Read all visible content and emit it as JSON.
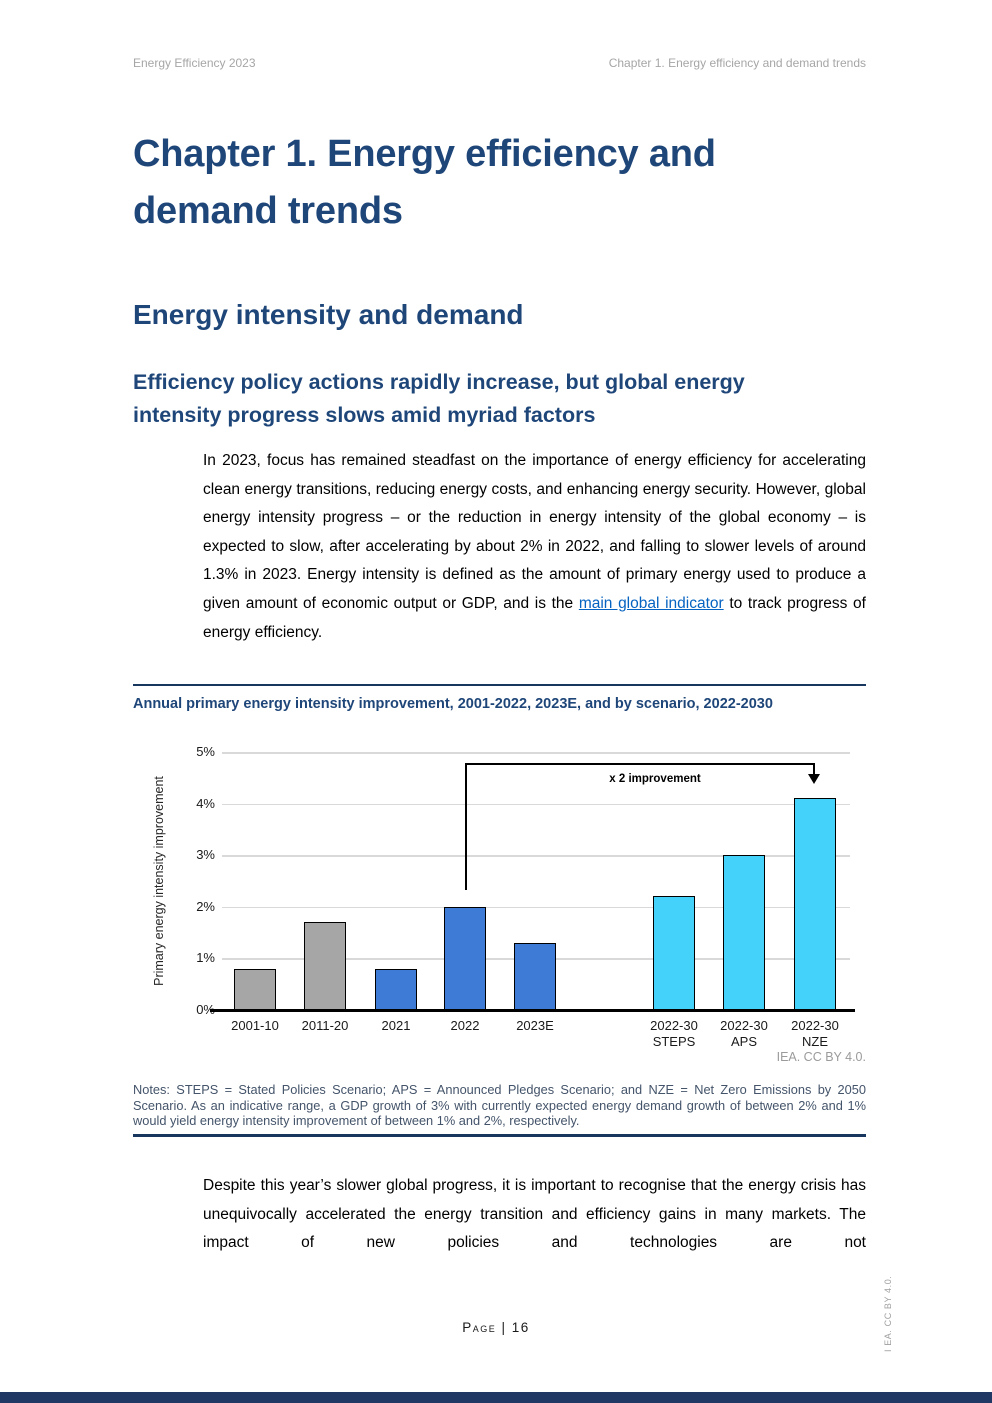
{
  "header": {
    "left": "Energy Efficiency 2023",
    "right": "Chapter 1. Energy efficiency and demand trends"
  },
  "title": "Chapter 1. Energy efficiency and demand trends",
  "section": {
    "heading": "Energy intensity and demand",
    "subheading": "Efficiency policy actions rapidly increase, but global energy intensity progress slows amid myriad factors"
  },
  "paragraph1": {
    "pre_link": "In 2023, focus has remained steadfast on the importance of energy efficiency for accelerating clean energy transitions, reducing energy costs, and enhancing energy security. However, global energy intensity progress – or the reduction in energy intensity of the global economy – is expected to slow, after accelerating by about 2% in 2022, and falling to slower levels of around 1.3% in 2023. Energy intensity is defined as the amount of primary energy used to produce a given amount of economic output or GDP, and is the ",
    "link_text": "main global indicator",
    "post_link": " to track progress of energy efficiency."
  },
  "paragraph2": "Despite this year’s slower global progress, it is important to recognise that the energy crisis has unequivocally accelerated the energy transition and efficiency gains in many markets. The impact of new policies and technologies are not",
  "figure": {
    "title": "Annual primary energy intensity improvement, 2001-2022, 2023E, and by scenario, 2022-2030",
    "attribution": "IEA. CC BY 4.0.",
    "notes": "Notes: STEPS = Stated Policies Scenario; APS = Announced Pledges Scenario; and NZE = Net Zero Emissions by 2050 Scenario. As an indicative range, a GDP growth of 3% with currently expected energy demand growth of between 2% and 1% would yield energy intensity improvement of between 1% and 2%, respectively."
  },
  "chart_data": {
    "type": "bar",
    "title": "Annual primary energy intensity improvement, 2001-2022, 2023E, and by scenario, 2022-2030",
    "xlabel": "",
    "ylabel": "Primary energy intensity improvement",
    "ylim": [
      0,
      5
    ],
    "yticks": [
      0,
      1,
      2,
      3,
      4,
      5
    ],
    "ytick_labels": [
      "0%",
      "1%",
      "2%",
      "3%",
      "4%",
      "5%"
    ],
    "grid": true,
    "legend": false,
    "categories": [
      "2001-10",
      "2011-20",
      "2021",
      "2022",
      "2023E",
      "2022-30 STEPS",
      "2022-30 APS",
      "2022-30 NZE"
    ],
    "category_lines": [
      [
        "2001-10"
      ],
      [
        "2011-20"
      ],
      [
        "2021"
      ],
      [
        "2022"
      ],
      [
        "2023E"
      ],
      [
        "2022-30",
        "STEPS"
      ],
      [
        "2022-30",
        "APS"
      ],
      [
        "2022-30",
        "NZE"
      ]
    ],
    "values": [
      0.8,
      1.7,
      0.8,
      2.0,
      1.3,
      2.2,
      3.0,
      4.1
    ],
    "bar_colors": [
      "#a6a6a6",
      "#a6a6a6",
      "#3e7bd6",
      "#3e7bd6",
      "#3e7bd6",
      "#45d2fa",
      "#45d2fa",
      "#45d2fa"
    ],
    "bar_border_color": "#000000",
    "annotation": {
      "text": "x 2 improvement",
      "from_category": "2022",
      "to_category": "2022-30 NZE"
    }
  },
  "footer": {
    "page_label": "Page | 16",
    "side_attribution": "I EA. CC BY 4.0."
  },
  "colors": {
    "heading_navy": "#1f4679",
    "divider_navy": "#17375e",
    "link_blue": "#0563c1",
    "notes_slate": "#44546a",
    "bar_gray": "#a6a6a6",
    "bar_blue": "#3e7bd6",
    "bar_cyan": "#45d2fa",
    "grid_gray": "#d9d9d9",
    "bottom_bar_navy": "#1f3864"
  }
}
